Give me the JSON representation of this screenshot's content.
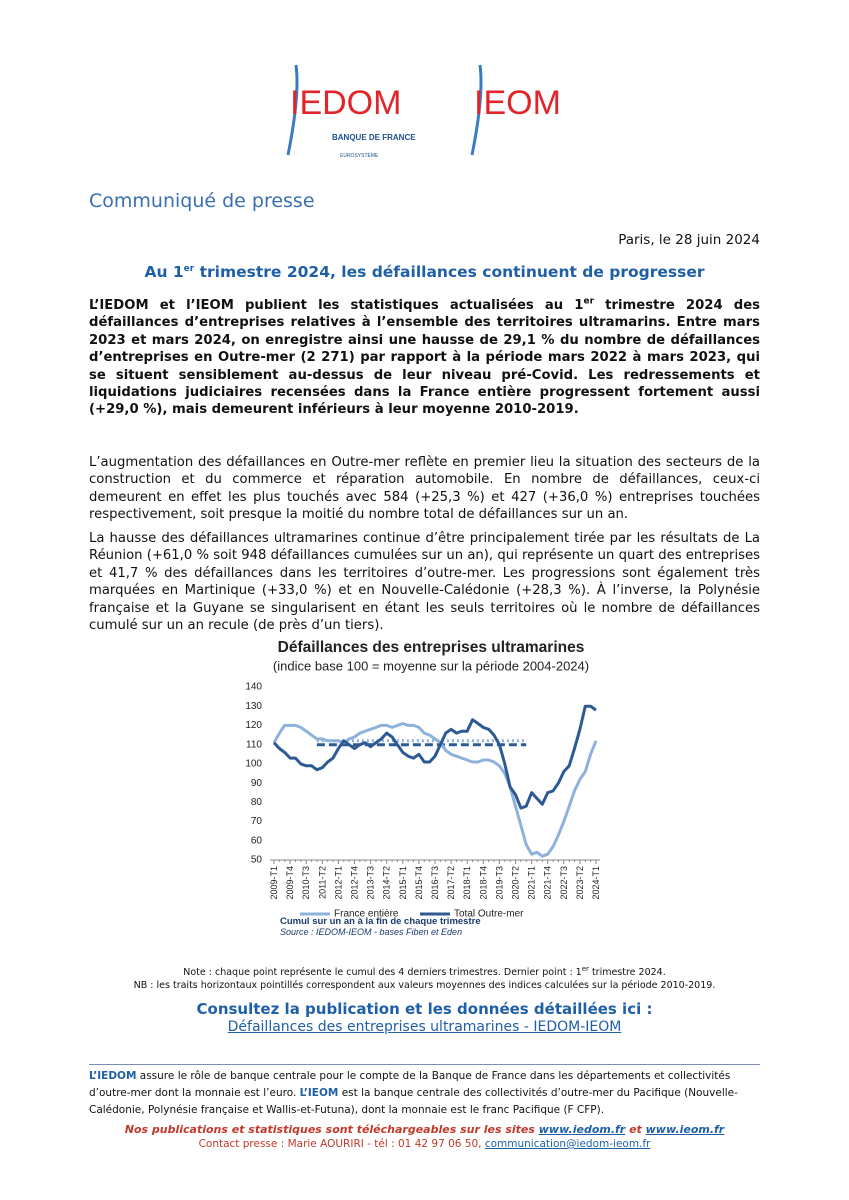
{
  "header": {
    "iedom": "IEDOM",
    "banque": "BANQUE DE FRANCE",
    "eurosysteme": "EUROSYSTÈME",
    "ieom": "IEOM"
  },
  "document": {
    "heading": "Communiqué de presse",
    "date": "Paris, le 28 juin 2024",
    "title": [
      "Au 1",
      "er",
      " trimestre 2024, les défaillances continuent de progresser"
    ],
    "intro": [
      "L’IEDOM et l’IEOM publient les statistiques actualisées au 1",
      "er",
      " trimestre 2024 des défaillances d’entreprises relatives à l’ensemble des territoires ultramarins. Entre mars 2023 et mars 2024, on enregistre ainsi une hausse de 29,1 % du nombre de défaillances d’entreprises en Outre-mer (2 271) par rapport à la période mars 2022 à mars 2023, qui se situent sensiblement au-dessus de leur niveau pré-Covid. Les redressements et liquidations judiciaires recensées dans la France entière progressent fortement aussi (+29,0 %), mais demeurent inférieurs à leur moyenne 2010-2019."
    ],
    "paragraphs": [
      "L’augmentation des défaillances en Outre-mer reflète en premier lieu la situation des secteurs de la construction et du commerce et réparation automobile. En nombre de défaillances, ceux-ci demeurent en effet les plus touchés avec 584 (+25,3 %) et 427 (+36,0 %) entreprises touchées respectivement, soit presque la moitié du nombre total de défaillances sur un an.",
      "La hausse des défaillances ultramarines continue d’être principalement tirée par les résultats de La Réunion (+61,0 % soit 948 défaillances cumulées sur un an), qui représente un quart des entreprises et 41,7 % des défaillances dans les territoires d’outre-mer. Les progressions sont également très marquées en Martinique (+33,0 %) et en Nouvelle-Calédonie (+28,3 %). À l’inverse, la Polynésie française et la Guyane se singularisent en étant les seuls territoires où le nombre de défaillances cumulé sur un an recule (de près d’un tiers)."
    ],
    "notes": [
      [
        "Note : chaque point représente le cumul des 4 derniers trimestres. Dernier point : 1",
        "er",
        " trimestre 2024."
      ],
      "NB : les traits horizontaux pointillés correspondent aux valeurs moyennes des indices calculées sur la période 2010-2019."
    ],
    "consult": "Consultez la publication et les données détaillées ici :",
    "consult_link": "Défaillances des entreprises ultramarines - IEDOM-IEOM"
  },
  "footer": {
    "about": [
      "L’IEDOM",
      " assure le rôle de banque centrale pour le compte de la Banque de France dans les départements et collectivités d’outre-mer dont la monnaie est l’euro. ",
      "L’IEOM",
      " est la banque centrale des collectivités d’outre-mer du Pacifique (Nouvelle-Calédonie, Polynésie française et Wallis-et-Futuna), dont la monnaie est le franc Pacifique (F CFP)."
    ],
    "publications": [
      "Nos publications et statistiques sont téléchargeables sur les sites ",
      "www.iedom.fr",
      " et ",
      "www.ieom.fr"
    ],
    "contact": [
      "Contact presse : Marie AOURIRI - tél : 01 42 97 06 50, ",
      "communication@iedom-ieom.fr"
    ]
  },
  "chart_data": {
    "type": "line",
    "title": "Défaillances des entreprises ultramarines",
    "subtitle": "(indice base 100 = moyenne sur la période 2004-2024)",
    "note": "Cumul sur un an à la fin de chaque trimestre",
    "source": "Source : IEDOM-IEOM - bases Fiben et Eden",
    "categories": [
      "2009-T1",
      null,
      null,
      "2009-T4",
      null,
      null,
      "2010-T3",
      null,
      null,
      "2011-T2",
      null,
      null,
      "2012-T1",
      null,
      null,
      "2012-T4",
      null,
      null,
      "2013-T3",
      null,
      null,
      "2014-T2",
      null,
      null,
      "2015-T1",
      null,
      null,
      "2015-T4",
      null,
      null,
      "2016-T3",
      null,
      null,
      "2017-T2",
      null,
      null,
      "2018-T1",
      null,
      null,
      "2018-T4",
      null,
      null,
      "2019-T3",
      null,
      null,
      "2020-T2",
      null,
      null,
      "2021-T1",
      null,
      null,
      "2021-T4",
      null,
      null,
      "2022-T3",
      null,
      null,
      "2023-T2",
      null,
      null,
      "2024-T1"
    ],
    "series": [
      {
        "name": "France entière",
        "color": "#8db3dc",
        "values": [
          111,
          116,
          120,
          120,
          120,
          119,
          117,
          115,
          113,
          113,
          112,
          112,
          112,
          111,
          113,
          114,
          116,
          117,
          118,
          119,
          120,
          120,
          119,
          120,
          121,
          120,
          120,
          119,
          116,
          115,
          113,
          111,
          107,
          105,
          104,
          103,
          102,
          101,
          101,
          102,
          102,
          101,
          99,
          95,
          88,
          78,
          68,
          58,
          53,
          54,
          52,
          53,
          57,
          63,
          70,
          78,
          86,
          92,
          96,
          105,
          112
        ]
      },
      {
        "name": "Total Outre-mer",
        "color": "#2e5a94",
        "values": [
          111,
          108,
          106,
          103,
          103,
          100,
          99,
          99,
          97,
          98,
          101,
          103,
          108,
          112,
          110,
          108,
          110,
          111,
          109,
          111,
          113,
          116,
          114,
          110,
          106,
          104,
          103,
          105,
          101,
          101,
          104,
          110,
          116,
          118,
          116,
          117,
          117,
          123,
          121,
          119,
          118,
          115,
          110,
          100,
          88,
          84,
          77,
          78,
          85,
          82,
          79,
          85,
          86,
          90,
          96,
          99,
          108,
          118,
          130,
          130,
          128
        ]
      }
    ],
    "averages": [
      {
        "color": "#8db3dc",
        "style": "dotted",
        "values": [
          null,
          null,
          null,
          null,
          null,
          null,
          null,
          null,
          112,
          112,
          112,
          112,
          112,
          112,
          112,
          112,
          112,
          112,
          112,
          112,
          112,
          112,
          112,
          112,
          112,
          112,
          112,
          112,
          112,
          112,
          112,
          112,
          112,
          112,
          112,
          112,
          112,
          112,
          112,
          112,
          112,
          112,
          112,
          112,
          112,
          112,
          112,
          112,
          null,
          null,
          null,
          null,
          null,
          null,
          null,
          null,
          null,
          null,
          null,
          null,
          null
        ]
      },
      {
        "color": "#2e5a94",
        "style": "dashed",
        "values": [
          null,
          null,
          null,
          null,
          null,
          null,
          null,
          null,
          110,
          110,
          110,
          110,
          110,
          110,
          110,
          110,
          110,
          110,
          110,
          110,
          110,
          110,
          110,
          110,
          110,
          110,
          110,
          110,
          110,
          110,
          110,
          110,
          110,
          110,
          110,
          110,
          110,
          110,
          110,
          110,
          110,
          110,
          110,
          110,
          110,
          110,
          110,
          110,
          null,
          null,
          null,
          null,
          null,
          null,
          null,
          null,
          null,
          null,
          null,
          null,
          null
        ]
      }
    ],
    "ylim": [
      50,
      140
    ],
    "yticks": [
      50,
      60,
      70,
      80,
      90,
      100,
      110,
      120,
      130,
      140
    ],
    "grid": false,
    "legend": "bottom"
  }
}
